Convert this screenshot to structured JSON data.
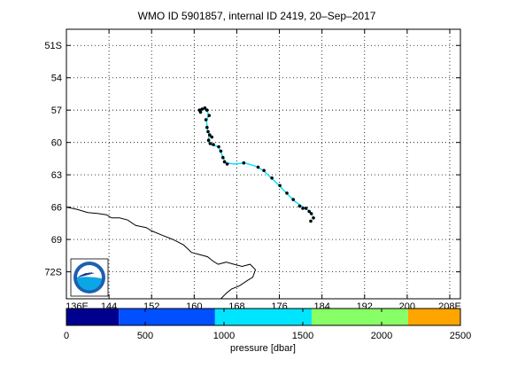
{
  "title": "WMO ID 5901857, internal ID 2419, 20–Sep–2017",
  "map": {
    "lon_range": [
      136,
      210
    ],
    "lat_range": [
      -74.5,
      -49.5
    ],
    "lon_ticks": [
      {
        "value": 136,
        "label": "136E"
      },
      {
        "value": 144,
        "label": "144"
      },
      {
        "value": 152,
        "label": "152"
      },
      {
        "value": 160,
        "label": "160"
      },
      {
        "value": 168,
        "label": "168"
      },
      {
        "value": 176,
        "label": "176"
      },
      {
        "value": 184,
        "label": "184"
      },
      {
        "value": 192,
        "label": "192"
      },
      {
        "value": 200,
        "label": "200"
      },
      {
        "value": 208,
        "label": "208E"
      }
    ],
    "lat_ticks": [
      {
        "value": -51,
        "label": "51S"
      },
      {
        "value": -54,
        "label": "54"
      },
      {
        "value": -57,
        "label": "57"
      },
      {
        "value": -60,
        "label": "60"
      },
      {
        "value": -63,
        "label": "63"
      },
      {
        "value": -66,
        "label": "66"
      },
      {
        "value": -69,
        "label": "69"
      },
      {
        "value": -72,
        "label": "72S"
      }
    ],
    "grid": true,
    "track_color": "#00e5ff",
    "point_color": "#000000",
    "track": [
      [
        161.3,
        -57.1
      ],
      [
        161.8,
        -56.9
      ],
      [
        162.4,
        -57.0
      ],
      [
        162.7,
        -57.5
      ],
      [
        162.3,
        -58.0
      ],
      [
        162.5,
        -58.8
      ],
      [
        162.8,
        -59.3
      ],
      [
        162.6,
        -59.9
      ],
      [
        163.2,
        -60.2
      ],
      [
        164.5,
        -60.4
      ],
      [
        165.0,
        -60.9
      ],
      [
        165.5,
        -61.5
      ],
      [
        166.0,
        -61.9
      ],
      [
        167.5,
        -62.0
      ],
      [
        169.5,
        -61.9
      ],
      [
        171.5,
        -62.2
      ],
      [
        173.0,
        -62.6
      ],
      [
        174.5,
        -63.3
      ],
      [
        176.0,
        -64.0
      ],
      [
        177.5,
        -64.8
      ],
      [
        179.0,
        -65.5
      ],
      [
        180.5,
        -66.0
      ],
      [
        181.5,
        -66.3
      ],
      [
        182.3,
        -66.8
      ]
    ],
    "points": [
      [
        161.2,
        -57.2
      ],
      [
        161.0,
        -57.0
      ],
      [
        161.5,
        -56.9
      ],
      [
        162.0,
        -56.8
      ],
      [
        162.4,
        -57.0
      ],
      [
        162.8,
        -57.5
      ],
      [
        162.2,
        -57.9
      ],
      [
        162.4,
        -58.6
      ],
      [
        162.6,
        -59.0
      ],
      [
        162.9,
        -59.3
      ],
      [
        163.3,
        -59.5
      ],
      [
        162.7,
        -59.8
      ],
      [
        163.0,
        -60.1
      ],
      [
        163.6,
        -60.2
      ],
      [
        164.6,
        -60.4
      ],
      [
        165.0,
        -60.8
      ],
      [
        165.4,
        -61.4
      ],
      [
        165.7,
        -61.8
      ],
      [
        166.2,
        -62.0
      ],
      [
        169.3,
        -61.9
      ],
      [
        172.0,
        -62.3
      ],
      [
        173.1,
        -62.6
      ],
      [
        174.6,
        -63.3
      ],
      [
        176.1,
        -64.0
      ],
      [
        177.4,
        -64.7
      ],
      [
        178.6,
        -65.3
      ],
      [
        179.8,
        -65.9
      ],
      [
        180.4,
        -66.1
      ],
      [
        181.0,
        -66.1
      ],
      [
        181.6,
        -66.4
      ],
      [
        182.0,
        -66.6
      ],
      [
        182.4,
        -67.0
      ],
      [
        181.9,
        -67.3
      ]
    ],
    "coastline": [
      [
        136,
        -66.0
      ],
      [
        138,
        -66.2
      ],
      [
        140,
        -66.5
      ],
      [
        142,
        -66.6
      ],
      [
        143.5,
        -66.7
      ],
      [
        144.5,
        -67.0
      ],
      [
        146,
        -67.0
      ],
      [
        147.5,
        -67.2
      ],
      [
        149,
        -67.7
      ],
      [
        151,
        -67.9
      ],
      [
        152,
        -68.2
      ],
      [
        154,
        -68.6
      ],
      [
        156,
        -69.0
      ],
      [
        158,
        -69.5
      ],
      [
        159.5,
        -70.2
      ],
      [
        161,
        -70.4
      ],
      [
        162.5,
        -70.6
      ],
      [
        163.5,
        -71.0
      ],
      [
        164.5,
        -71.3
      ],
      [
        166,
        -71.1
      ],
      [
        167.5,
        -71.3
      ],
      [
        169,
        -71.5
      ],
      [
        170.5,
        -71.3
      ],
      [
        171.5,
        -71.8
      ],
      [
        171.0,
        -72.5
      ],
      [
        170.0,
        -72.8
      ],
      [
        168.5,
        -73.3
      ],
      [
        167.0,
        -73.6
      ],
      [
        166.0,
        -74.0
      ],
      [
        165.0,
        -74.5
      ]
    ],
    "logo": {
      "label": "NOAA",
      "color": "#1e5fb0"
    }
  },
  "colorbar": {
    "label": "pressure [dbar]",
    "min": 0,
    "max": 2500,
    "ticks": [
      0,
      500,
      1000,
      1500,
      2000,
      2500
    ],
    "bands": [
      {
        "from": 0,
        "to": 333,
        "color": "#00008f"
      },
      {
        "from": 333,
        "to": 943,
        "color": "#0050ff"
      },
      {
        "from": 943,
        "to": 1556,
        "color": "#00e5ff"
      },
      {
        "from": 1556,
        "to": 2168,
        "color": "#88ff66"
      },
      {
        "from": 2168,
        "to": 2500,
        "color": "#ffa500"
      }
    ]
  }
}
